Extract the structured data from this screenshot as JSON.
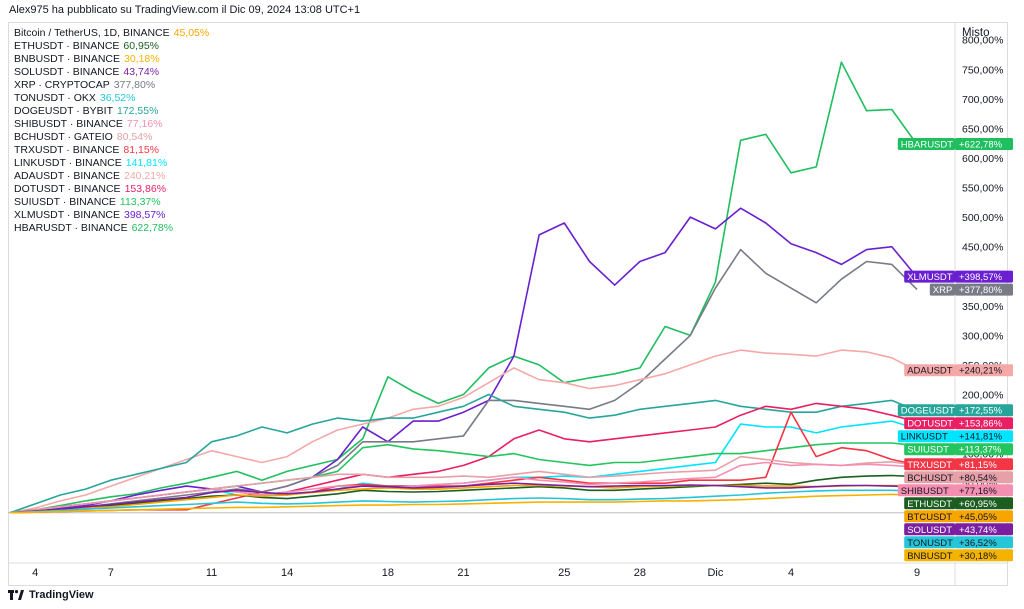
{
  "header": {
    "text": "Alex975 ha pubblicato su TradingView.com il Dic 09, 2024 13:08 UTC+1"
  },
  "scale_label": "Misto",
  "footer": {
    "brand": "TradingView",
    "logo_icon": "tradingview-logo-icon"
  },
  "legend": [
    {
      "symbol": "Bitcoin / TetherUS, 1D, BINANCE",
      "value": "45,05%",
      "color": "#f7a600"
    },
    {
      "symbol": "ETHUSDT · BINANCE",
      "value": "60,95%",
      "color": "#1b5e20"
    },
    {
      "symbol": "BNBUSDT · BINANCE",
      "value": "30,18%",
      "color": "#f5b301"
    },
    {
      "symbol": "SOLUSDT · BINANCE",
      "value": "43,74%",
      "color": "#7b1fa2"
    },
    {
      "symbol": "XRP · CRYPTOCAP",
      "value": "377,80%",
      "color": "#787b86"
    },
    {
      "symbol": "TONUSDT · OKX",
      "value": "36,52%",
      "color": "#26c6da"
    },
    {
      "symbol": "DOGEUSDT · BYBIT",
      "value": "172,55%",
      "color": "#26a69a"
    },
    {
      "symbol": "SHIBUSDT · BINANCE",
      "value": "77,16%",
      "color": "#f48fb1"
    },
    {
      "symbol": "BCHUSDT · GATEIO",
      "value": "80,54%",
      "color": "#e6a0a8"
    },
    {
      "symbol": "TRXUSDT · BINANCE",
      "value": "81,15%",
      "color": "#f23645"
    },
    {
      "symbol": "LINKUSDT · BINANCE",
      "value": "141,81%",
      "color": "#00e5ff"
    },
    {
      "symbol": "ADAUSDT · BINANCE",
      "value": "240,21%",
      "color": "#f4a9a8"
    },
    {
      "symbol": "DOTUSDT · BINANCE",
      "value": "153,86%",
      "color": "#e91e63"
    },
    {
      "symbol": "SUIUSDT · BINANCE",
      "value": "113,37%",
      "color": "#22c55e"
    },
    {
      "symbol": "XLMUSDT · BINANCE",
      "value": "398,57%",
      "color": "#6a1fd0"
    },
    {
      "symbol": "HBARUSDT · BINANCE",
      "value": "622,78%",
      "color": "#1fbf5f"
    }
  ],
  "chart_data": {
    "type": "line",
    "x": [
      "Nov 3",
      "Nov 4",
      "Nov 5",
      "Nov 6",
      "Nov 7",
      "Nov 8",
      "Nov 9",
      "Nov 10",
      "Nov 11",
      "Nov 12",
      "Nov 13",
      "Nov 14",
      "Nov 15",
      "Nov 16",
      "Nov 17",
      "Nov 18",
      "Nov 19",
      "Nov 20",
      "Nov 21",
      "Nov 22",
      "Nov 23",
      "Nov 24",
      "Nov 25",
      "Nov 26",
      "Nov 27",
      "Nov 28",
      "Nov 29",
      "Nov 30",
      "Dec 1",
      "Dec 2",
      "Dec 3",
      "Dec 4",
      "Dec 5",
      "Dec 6",
      "Dec 7",
      "Dec 8",
      "Dec 9"
    ],
    "x_tick_labels": [
      {
        "x": "Nov 4",
        "label": "4"
      },
      {
        "x": "Nov 7",
        "label": "7"
      },
      {
        "x": "Nov 11",
        "label": "11"
      },
      {
        "x": "Nov 14",
        "label": "14"
      },
      {
        "x": "Nov 18",
        "label": "18"
      },
      {
        "x": "Nov 21",
        "label": "21"
      },
      {
        "x": "Nov 25",
        "label": "25"
      },
      {
        "x": "Nov 28",
        "label": "28"
      },
      {
        "x": "Dec 1",
        "label": "Dic"
      },
      {
        "x": "Dec 4",
        "label": "4"
      },
      {
        "x": "Dec 9",
        "label": "9"
      }
    ],
    "y_ticks": [
      -50,
      50,
      100,
      150,
      200,
      250,
      300,
      350,
      400,
      450,
      500,
      550,
      600,
      650,
      700,
      750,
      800
    ],
    "y_tick_labels": [
      "−50,00%",
      "50,00%",
      "100,00%",
      "150,00%",
      "200,00%",
      "250,00%",
      "300,00%",
      "350,00%",
      "400,00%",
      "450,00%",
      "500,00%",
      "550,00%",
      "600,00%",
      "650,00%",
      "700,00%",
      "750,00%",
      "800,00%"
    ],
    "ylim": [
      -85,
      830
    ],
    "ylabel": "Misto",
    "grid": false,
    "baseline": 0,
    "series": [
      {
        "name": "HBARUSDT",
        "label": "HBARUSDT",
        "value_label": "+622,78%",
        "color": "#1fbf5f",
        "label_value": 622.78,
        "values": [
          0,
          5,
          12,
          20,
          27,
          32,
          42,
          50,
          60,
          70,
          55,
          70,
          80,
          90,
          125,
          230,
          205,
          185,
          200,
          245,
          265,
          250,
          220,
          228,
          235,
          245,
          315,
          300,
          390,
          630,
          640,
          575,
          585,
          762,
          680,
          682,
          622.78
        ]
      },
      {
        "name": "XLMUSDT",
        "label": "XLMUSDT",
        "value_label": "+398,57%",
        "color": "#6a1fd0",
        "label_value": 398.57,
        "values": [
          0,
          3,
          8,
          12,
          20,
          30,
          38,
          45,
          40,
          45,
          35,
          45,
          60,
          90,
          145,
          120,
          155,
          155,
          170,
          190,
          265,
          470,
          490,
          425,
          385,
          425,
          440,
          500,
          480,
          515,
          490,
          455,
          440,
          420,
          445,
          450,
          398.57
        ]
      },
      {
        "name": "XRP",
        "label": "XRP",
        "value_label": "+377,80%",
        "color": "#787b86",
        "label_value": 377.8,
        "values": [
          0,
          2,
          6,
          10,
          15,
          20,
          25,
          30,
          35,
          40,
          35,
          45,
          60,
          80,
          120,
          120,
          120,
          125,
          130,
          190,
          190,
          185,
          180,
          175,
          190,
          220,
          260,
          300,
          380,
          445,
          405,
          380,
          355,
          395,
          425,
          420,
          377.8
        ]
      },
      {
        "name": "ADAUSDT",
        "label": "ADAUSDT",
        "value_label": "+240,21%",
        "color": "#f4a9a8",
        "label_value": 240.21,
        "values": [
          0,
          8,
          20,
          30,
          45,
          60,
          75,
          90,
          105,
          95,
          85,
          95,
          120,
          140,
          150,
          160,
          175,
          180,
          195,
          220,
          245,
          225,
          220,
          210,
          215,
          225,
          235,
          250,
          265,
          275,
          270,
          268,
          265,
          275,
          272,
          262,
          240.21
        ]
      },
      {
        "name": "DOGEUSDT",
        "label": "DOGEUSDT",
        "value_label": "+172,55%",
        "color": "#26a69a",
        "label_value": 172.55,
        "values": [
          0,
          15,
          30,
          40,
          55,
          65,
          75,
          85,
          120,
          130,
          145,
          135,
          150,
          160,
          155,
          160,
          160,
          170,
          180,
          200,
          180,
          175,
          170,
          160,
          165,
          175,
          180,
          185,
          190,
          180,
          175,
          170,
          170,
          180,
          185,
          190,
          172.55
        ]
      },
      {
        "name": "DOTUSDT",
        "label": "DOTUSDT",
        "value_label": "+153,86%",
        "color": "#e91e63",
        "label_value": 153.86,
        "values": [
          0,
          5,
          10,
          15,
          20,
          25,
          30,
          35,
          40,
          35,
          30,
          35,
          45,
          55,
          65,
          60,
          65,
          70,
          80,
          95,
          125,
          140,
          125,
          120,
          125,
          130,
          135,
          140,
          145,
          165,
          180,
          175,
          185,
          180,
          175,
          165,
          153.86
        ]
      },
      {
        "name": "LINKUSDT",
        "label": "LINKUSDT",
        "value_label": "+141,81%",
        "color": "#00e5ff",
        "label_value": 141.81,
        "values": [
          0,
          5,
          10,
          15,
          20,
          25,
          30,
          35,
          40,
          30,
          28,
          32,
          35,
          40,
          50,
          45,
          45,
          48,
          50,
          55,
          60,
          60,
          62,
          60,
          65,
          70,
          75,
          80,
          85,
          150,
          145,
          145,
          135,
          145,
          150,
          155,
          141.81
        ]
      },
      {
        "name": "SUIUSDT",
        "label": "SUIUSDT",
        "value_label": "+113,37%",
        "color": "#22c55e",
        "label_value": 113.37,
        "values": [
          0,
          5,
          10,
          15,
          20,
          25,
          30,
          35,
          40,
          45,
          50,
          55,
          60,
          70,
          110,
          115,
          108,
          105,
          100,
          95,
          100,
          90,
          85,
          80,
          85,
          85,
          90,
          95,
          100,
          100,
          105,
          110,
          115,
          118,
          118,
          118,
          113.37
        ]
      },
      {
        "name": "TRXUSDT",
        "label": "TRXUSDT",
        "value_label": "+81,15%",
        "color": "#f23645",
        "label_value": 81.15,
        "values": [
          0,
          1,
          2,
          3,
          4,
          5,
          5,
          5,
          15,
          25,
          35,
          30,
          35,
          45,
          48,
          45,
          45,
          45,
          45,
          50,
          55,
          60,
          55,
          50,
          50,
          50,
          50,
          55,
          55,
          55,
          60,
          170,
          95,
          110,
          105,
          90,
          81.15
        ]
      },
      {
        "name": "BCHUSDT",
        "label": "BCHUSDT",
        "value_label": "+80,54%",
        "color": "#e6a0a8",
        "label_value": 80.54,
        "values": [
          0,
          5,
          10,
          15,
          20,
          25,
          30,
          35,
          40,
          45,
          50,
          55,
          60,
          65,
          65,
          60,
          60,
          60,
          62,
          60,
          65,
          70,
          65,
          60,
          62,
          65,
          68,
          70,
          72,
          95,
          90,
          85,
          82,
          80,
          84,
          86,
          80.54
        ]
      },
      {
        "name": "SHIBUSDT",
        "label": "SHIBUSDT",
        "value_label": "+77,16%",
        "color": "#f48fb1",
        "label_value": 77.16,
        "values": [
          0,
          5,
          10,
          15,
          20,
          25,
          30,
          35,
          40,
          35,
          30,
          35,
          40,
          45,
          45,
          42,
          45,
          48,
          50,
          55,
          60,
          55,
          52,
          48,
          50,
          52,
          55,
          58,
          60,
          80,
          85,
          80,
          82,
          80,
          82,
          80,
          77.16
        ]
      },
      {
        "name": "ETHUSDT",
        "label": "ETHUSDT",
        "value_label": "+60,95%",
        "color": "#1b5e20",
        "label_value": 60.95,
        "values": [
          0,
          3,
          6,
          8,
          12,
          16,
          20,
          24,
          28,
          30,
          26,
          24,
          28,
          32,
          38,
          36,
          35,
          36,
          38,
          40,
          42,
          44,
          42,
          38,
          38,
          40,
          42,
          44,
          46,
          48,
          50,
          48,
          55,
          60,
          62,
          63,
          60.95
        ]
      },
      {
        "name": "BTCUSDT",
        "label": "BTCUSDT",
        "value_label": "+45,05%",
        "color": "#f7a600",
        "label_value": 45.05,
        "values": [
          0,
          2,
          5,
          8,
          10,
          14,
          18,
          22,
          26,
          30,
          28,
          30,
          34,
          38,
          40,
          42,
          40,
          40,
          42,
          44,
          46,
          46,
          45,
          44,
          42,
          44,
          45,
          46,
          46,
          46,
          45,
          45,
          44,
          45,
          46,
          46,
          45.05
        ]
      },
      {
        "name": "SOLUSDT",
        "label": "SOLUSDT",
        "value_label": "+43,74%",
        "color": "#7b1fa2",
        "label_value": 43.74,
        "values": [
          0,
          3,
          6,
          10,
          14,
          18,
          22,
          26,
          34,
          38,
          34,
          32,
          35,
          40,
          45,
          44,
          42,
          43,
          45,
          48,
          50,
          48,
          46,
          44,
          45,
          46,
          46,
          47,
          46,
          44,
          42,
          42,
          44,
          46,
          46,
          45,
          43.74
        ]
      },
      {
        "name": "TONUSDT",
        "label": "TONUSDT",
        "value_label": "+36,52%",
        "color": "#26c6da",
        "label_value": 36.52,
        "values": [
          0,
          2,
          4,
          6,
          8,
          10,
          12,
          14,
          16,
          18,
          16,
          15,
          16,
          18,
          20,
          19,
          18,
          19,
          20,
          22,
          24,
          25,
          24,
          22,
          22,
          23,
          24,
          26,
          28,
          30,
          33,
          35,
          37,
          38,
          38,
          38,
          36.52
        ]
      },
      {
        "name": "BNBUSDT",
        "label": "BNBUSDT",
        "value_label": "+30,18%",
        "color": "#f5b301",
        "label_value": 30.18,
        "values": [
          0,
          1,
          2,
          3,
          4,
          5,
          6,
          7,
          8,
          9,
          9,
          10,
          11,
          12,
          13,
          13,
          14,
          14,
          15,
          16,
          17,
          18,
          18,
          18,
          18,
          19,
          20,
          20,
          21,
          22,
          24,
          26,
          28,
          29,
          30,
          31,
          30.18
        ]
      }
    ]
  }
}
